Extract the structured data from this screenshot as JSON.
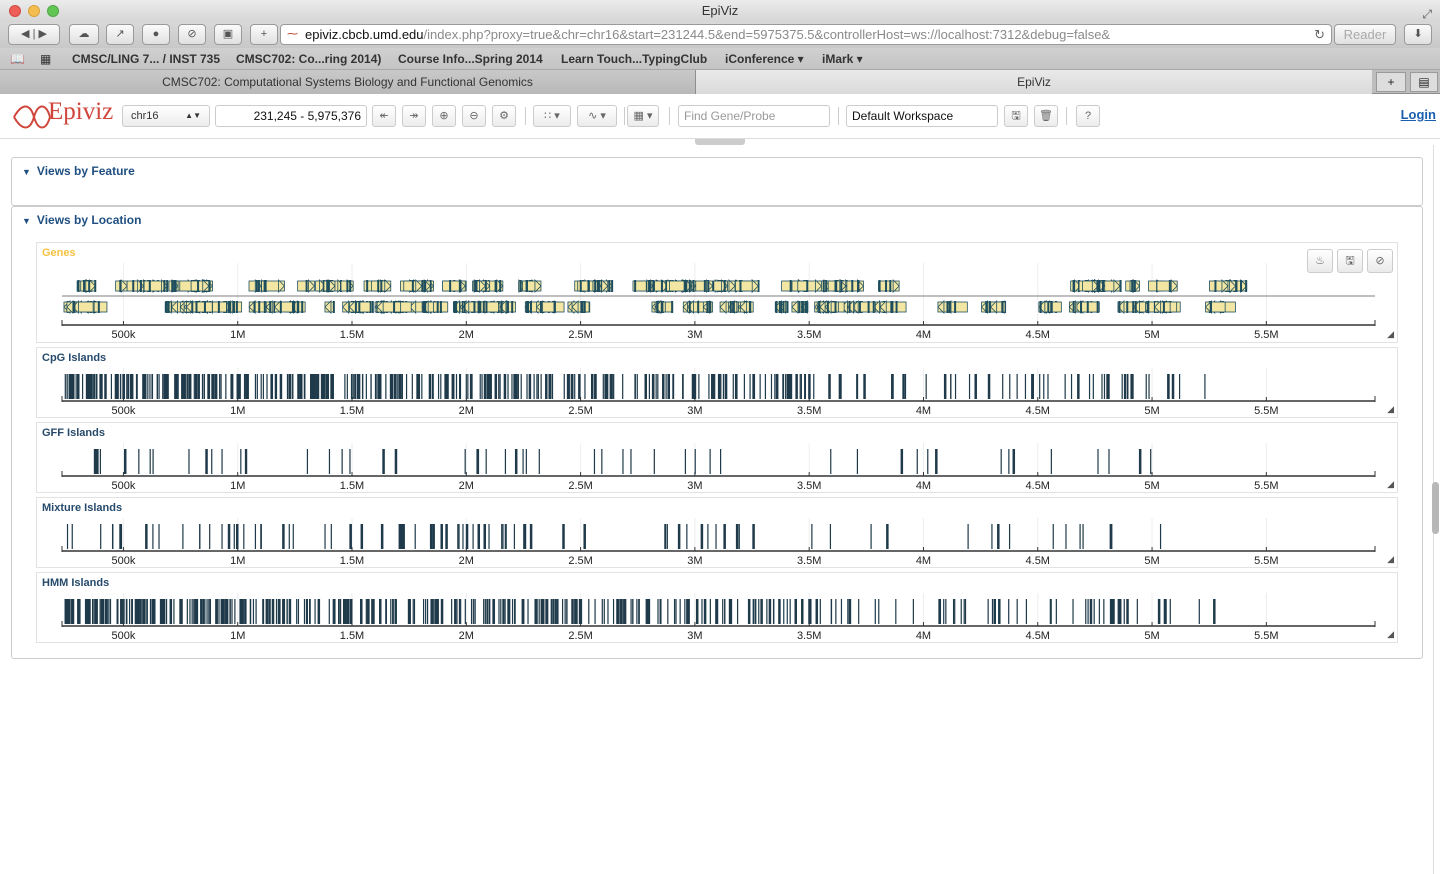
{
  "window": {
    "title": "EpiViz"
  },
  "browser": {
    "url_host": "epiviz.cbcb.umd.edu",
    "url_rest": "/index.php?proxy=true&chr=chr16&start=231244.5&end=5975375.5&controllerHost=ws://localhost:7312&debug=false&",
    "reader_label": "Reader",
    "bookmarks": [
      "CMSC/LING 7... / INST 735",
      "CMSC702: Co...ring 2014)",
      "Course Info...Spring 2014",
      "Learn Touch...TypingClub",
      "iConference ▾",
      "iMark ▾"
    ],
    "tabs": [
      "CMSC702: Computational Systems Biology and Functional Genomics",
      "EpiViz"
    ]
  },
  "app": {
    "logo_text": "Epiviz",
    "chromosome": "chr16",
    "range": "231,245 - 5,975,376",
    "find_placeholder": "Find Gene/Probe",
    "workspace": "Default Workspace",
    "help_label": "?",
    "login_label": "Login"
  },
  "panels": {
    "feature": "Views by Feature",
    "location": "Views by Location"
  },
  "axis": {
    "min": 231245,
    "max": 5975376,
    "ticks": [
      500000,
      1000000,
      1500000,
      2000000,
      2500000,
      3000000,
      3500000,
      4000000,
      4500000,
      5000000,
      5500000
    ],
    "tick_labels": [
      "500k",
      "1M",
      "1.5M",
      "2M",
      "2.5M",
      "3M",
      "3.5M",
      "4M",
      "4.5M",
      "5M",
      "5.5M"
    ]
  },
  "tracks": [
    {
      "id": "genes",
      "title": "Genes",
      "type": "genes"
    },
    {
      "id": "cpg",
      "title": "CpG Islands",
      "type": "blocks"
    },
    {
      "id": "gff",
      "title": "GFF Islands",
      "type": "blocks"
    },
    {
      "id": "mixture",
      "title": "Mixture Islands",
      "type": "blocks"
    },
    {
      "id": "hmm",
      "title": "HMM Islands",
      "type": "blocks"
    }
  ],
  "colors": {
    "gene_fill": "#f2e6a2",
    "gene_stroke": "#1f4f5f",
    "block": "#1f3a4a",
    "title_genes": "#f5c342"
  }
}
